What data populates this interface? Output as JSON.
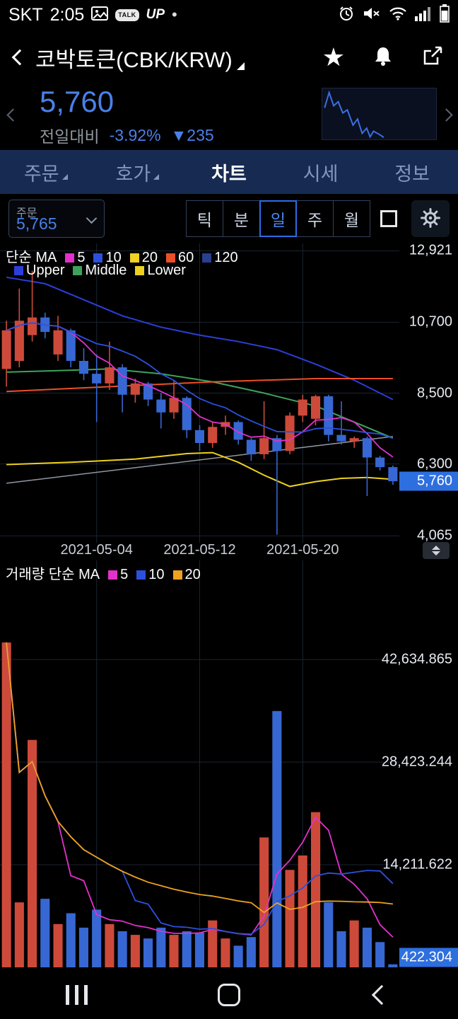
{
  "status_bar": {
    "carrier": "SKT",
    "time": "2:05",
    "talk_label": "TALK",
    "up_label": "UP",
    "dot": "•"
  },
  "header": {
    "title": "코박토큰(CBK/KRW)"
  },
  "price_info": {
    "price": "5,760",
    "change_label": "전일대비",
    "change_pct": "-3.92%",
    "change_amount": "▼235"
  },
  "nav_tabs": {
    "items": [
      {
        "label": "주문",
        "caret": true,
        "active": false
      },
      {
        "label": "호가",
        "caret": true,
        "active": false
      },
      {
        "label": "차트",
        "caret": false,
        "active": true
      },
      {
        "label": "시세",
        "caret": false,
        "active": false
      },
      {
        "label": "정보",
        "caret": false,
        "active": false
      }
    ]
  },
  "toolbar": {
    "order_label": "주문",
    "order_price": "5,765",
    "intervals": [
      "틱",
      "분",
      "일",
      "주",
      "월"
    ],
    "selected_interval": "일"
  },
  "price_chart": {
    "legend_title": "단순 MA",
    "ma_items": [
      {
        "label": "5",
        "color": "#e231cb"
      },
      {
        "label": "10",
        "color": "#2c50dd"
      },
      {
        "label": "20",
        "color": "#f2d024"
      },
      {
        "label": "60",
        "color": "#eb4f27"
      },
      {
        "label": "120",
        "color": "#27408f"
      }
    ],
    "band_items": [
      {
        "label": "Upper",
        "color": "#2b3fd8"
      },
      {
        "label": "Middle",
        "color": "#3da35a"
      },
      {
        "label": "Lower",
        "color": "#ecd11f"
      }
    ],
    "axis_labels": [
      {
        "text": "12,921",
        "value": 12921
      },
      {
        "text": "10,700",
        "value": 10700
      },
      {
        "text": "8,500",
        "value": 8500
      },
      {
        "text": "6,300",
        "value": 6300
      },
      {
        "text": "4,065",
        "value": 4065
      }
    ],
    "current_tag": {
      "text": "5,760",
      "value": 5760
    },
    "x_labels": [
      {
        "text": "2021-05-04",
        "index": 7
      },
      {
        "text": "2021-05-12",
        "index": 15
      },
      {
        "text": "2021-05-20",
        "index": 23
      }
    ]
  },
  "volume_chart": {
    "legend_title": "거래량 단순 MA",
    "ma_items": [
      {
        "label": "5",
        "color": "#e231cb"
      },
      {
        "label": "10",
        "color": "#2c50dd"
      },
      {
        "label": "20",
        "color": "#efa21f"
      }
    ],
    "axis_labels": [
      {
        "text": "42,634.865",
        "value": 42634.865
      },
      {
        "text": "28,423.244",
        "value": 28423.244
      },
      {
        "text": "14,211.622",
        "value": 14211.622
      }
    ],
    "current_tag": {
      "text": "422.304",
      "value": 422.304
    }
  },
  "colors": {
    "accent": "#4a80e8",
    "candle_up": "#cd4a3a",
    "candle_down": "#3767d2",
    "ma5": "#e231cb",
    "ma10": "#2c50dd",
    "ma60": "#eb4f27",
    "bb_upper": "#2b3fd8",
    "bb_middle": "#3da35a",
    "bb_lower": "#ecd11f",
    "trendline": "#9097a1",
    "vol_ma20": "#efa21f",
    "grid": "#1b2430",
    "tag_bg": "#2e6fe0",
    "spark": "#3a6fe0"
  },
  "chart_data": [
    {
      "type": "candlestick",
      "title": "CBK/KRW daily candles with MA5/MA10 and Bollinger bands",
      "ylim": [
        3850,
        13150
      ],
      "gridlines": [
        12921,
        10700,
        8500,
        6300,
        4065
      ],
      "x_gridline_indices": [
        7,
        15,
        23
      ],
      "x_tick_labels": [
        "2021-05-04",
        "2021-05-12",
        "2021-05-20"
      ],
      "candles": [
        [
          9250,
          10750,
          8700,
          10450
        ],
        [
          9500,
          11750,
          9300,
          10750
        ],
        [
          10300,
          12300,
          10100,
          10850
        ],
        [
          10850,
          11000,
          10200,
          10400
        ],
        [
          9700,
          10900,
          9500,
          10450
        ],
        [
          10450,
          10500,
          9300,
          9500
        ],
        [
          9500,
          9900,
          8900,
          9100
        ],
        [
          9100,
          9700,
          7600,
          8800
        ],
        [
          8800,
          10100,
          8600,
          9300
        ],
        [
          9300,
          9400,
          7900,
          8450
        ],
        [
          8450,
          8950,
          8200,
          8800
        ],
        [
          8800,
          8850,
          8100,
          8300
        ],
        [
          8300,
          8500,
          7400,
          7900
        ],
        [
          7900,
          8900,
          7700,
          8350
        ],
        [
          8350,
          8400,
          7100,
          7350
        ],
        [
          7350,
          7500,
          6700,
          6950
        ],
        [
          6950,
          7600,
          6800,
          7450
        ],
        [
          7450,
          7800,
          7200,
          7600
        ],
        [
          7600,
          7650,
          6900,
          7050
        ],
        [
          7050,
          7100,
          6400,
          6600
        ],
        [
          6600,
          8250,
          6450,
          7100
        ],
        [
          7100,
          7200,
          4100,
          6700
        ],
        [
          6700,
          7900,
          6600,
          7800
        ],
        [
          7800,
          8450,
          7600,
          8300
        ],
        [
          7700,
          8450,
          7500,
          8400
        ],
        [
          8400,
          8450,
          7000,
          7200
        ],
        [
          7200,
          8250,
          6900,
          7000
        ],
        [
          7000,
          7150,
          6800,
          7100
        ],
        [
          7100,
          7150,
          5300,
          6500
        ],
        [
          6500,
          6550,
          6100,
          6200
        ],
        [
          6200,
          6250,
          5650,
          5760
        ]
      ],
      "overlays": {
        "upper": [
          [
            0,
            12100
          ],
          [
            3,
            11900
          ],
          [
            6,
            11400
          ],
          [
            9,
            10900
          ],
          [
            12,
            10550
          ],
          [
            15,
            10300
          ],
          [
            18,
            10100
          ],
          [
            21,
            9850
          ],
          [
            24,
            9400
          ],
          [
            27,
            8900
          ],
          [
            30,
            8300
          ]
        ],
        "middle": [
          [
            0,
            9150
          ],
          [
            4,
            9200
          ],
          [
            8,
            9250
          ],
          [
            12,
            9100
          ],
          [
            16,
            8850
          ],
          [
            20,
            8500
          ],
          [
            24,
            8100
          ],
          [
            27,
            7600
          ],
          [
            30,
            7100
          ]
        ],
        "lower": [
          [
            0,
            6280
          ],
          [
            5,
            6350
          ],
          [
            10,
            6450
          ],
          [
            14,
            6620
          ],
          [
            16,
            6650
          ],
          [
            18,
            6350
          ],
          [
            20,
            5950
          ],
          [
            22,
            5600
          ],
          [
            24,
            5750
          ],
          [
            26,
            5850
          ],
          [
            28,
            5880
          ],
          [
            30,
            5820
          ]
        ],
        "ma60": [
          [
            0,
            8550
          ],
          [
            8,
            8700
          ],
          [
            16,
            8850
          ],
          [
            24,
            8950
          ],
          [
            30,
            8950
          ]
        ],
        "trendline": [
          [
            0,
            5700
          ],
          [
            30,
            7150
          ]
        ]
      }
    },
    {
      "type": "bar",
      "title": "CBK/KRW daily volume with MA5/MA10/MA20",
      "ylim": [
        0,
        56360
      ],
      "gridlines": [
        42634.865,
        28423.244,
        14211.622
      ],
      "x_gridline_indices": [
        7,
        15,
        23
      ],
      "values": [
        45000,
        9000,
        31500,
        9500,
        6000,
        7500,
        5500,
        8000,
        6000,
        5000,
        4500,
        4000,
        5500,
        4500,
        5000,
        4800,
        6500,
        4000,
        3000,
        4200,
        18000,
        35500,
        13500,
        15500,
        21500,
        9000,
        5000,
        6500,
        5500,
        3500,
        422.304
      ]
    }
  ],
  "sparkline": {
    "points": [
      [
        2,
        38
      ],
      [
        6,
        8
      ],
      [
        10,
        34
      ],
      [
        14,
        26
      ],
      [
        18,
        48
      ],
      [
        22,
        42
      ],
      [
        27,
        72
      ],
      [
        31,
        60
      ],
      [
        35,
        88
      ],
      [
        39,
        78
      ],
      [
        42,
        95
      ],
      [
        45,
        84
      ],
      [
        50,
        90
      ],
      [
        54,
        96
      ]
    ]
  }
}
